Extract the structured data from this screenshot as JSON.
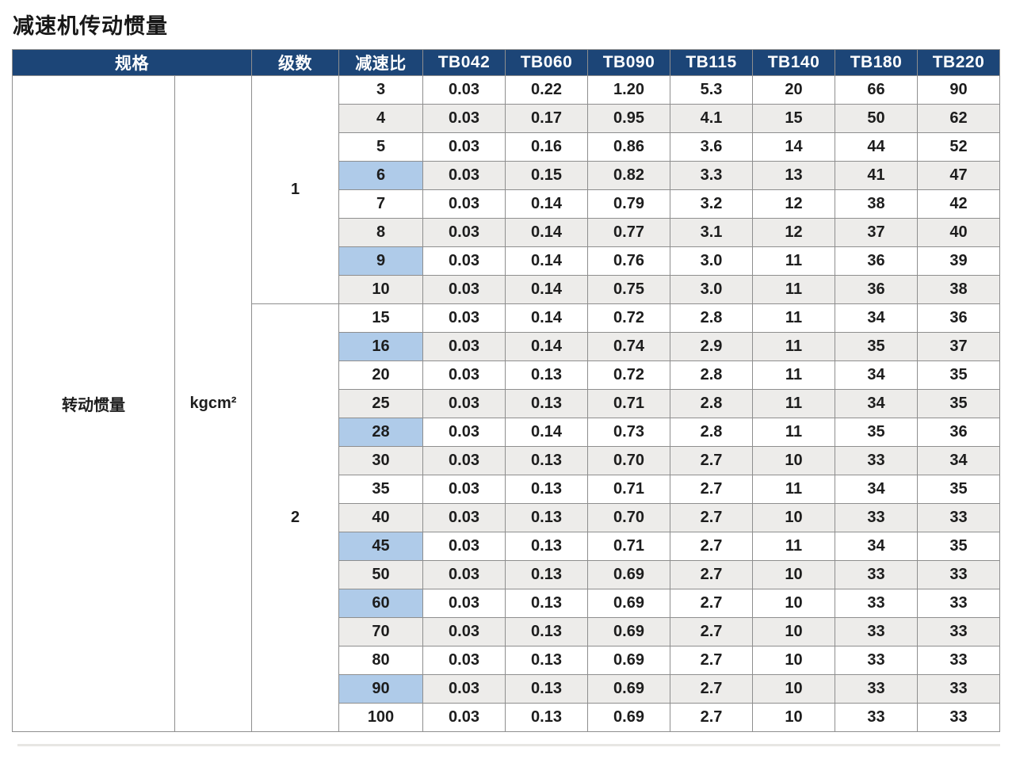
{
  "page": {
    "title": "减速机传动惯量"
  },
  "colors": {
    "header_bg": "#1c4577",
    "header_text": "#ffffff",
    "stripe_bg": "#edecea",
    "highlight_bg": "#afcbe9",
    "border": "#8e8e8e",
    "text": "#1d1d1d"
  },
  "table": {
    "header": {
      "spec": "规格",
      "stages": "级数",
      "ratio": "减速比",
      "models": [
        "TB042",
        "TB060",
        "TB090",
        "TB115",
        "TB140",
        "TB180",
        "TB220"
      ]
    },
    "spec_label": "转动惯量",
    "unit": "kgcm²",
    "groups": [
      {
        "stage": "1",
        "rows": [
          {
            "ratio": "3",
            "highlight": false,
            "values": [
              "0.03",
              "0.22",
              "1.20",
              "5.3",
              "20",
              "66",
              "90"
            ]
          },
          {
            "ratio": "4",
            "highlight": false,
            "values": [
              "0.03",
              "0.17",
              "0.95",
              "4.1",
              "15",
              "50",
              "62"
            ]
          },
          {
            "ratio": "5",
            "highlight": false,
            "values": [
              "0.03",
              "0.16",
              "0.86",
              "3.6",
              "14",
              "44",
              "52"
            ]
          },
          {
            "ratio": "6",
            "highlight": true,
            "values": [
              "0.03",
              "0.15",
              "0.82",
              "3.3",
              "13",
              "41",
              "47"
            ]
          },
          {
            "ratio": "7",
            "highlight": false,
            "values": [
              "0.03",
              "0.14",
              "0.79",
              "3.2",
              "12",
              "38",
              "42"
            ]
          },
          {
            "ratio": "8",
            "highlight": false,
            "values": [
              "0.03",
              "0.14",
              "0.77",
              "3.1",
              "12",
              "37",
              "40"
            ]
          },
          {
            "ratio": "9",
            "highlight": true,
            "values": [
              "0.03",
              "0.14",
              "0.76",
              "3.0",
              "11",
              "36",
              "39"
            ]
          },
          {
            "ratio": "10",
            "highlight": false,
            "values": [
              "0.03",
              "0.14",
              "0.75",
              "3.0",
              "11",
              "36",
              "38"
            ]
          }
        ]
      },
      {
        "stage": "2",
        "rows": [
          {
            "ratio": "15",
            "highlight": false,
            "values": [
              "0.03",
              "0.14",
              "0.72",
              "2.8",
              "11",
              "34",
              "36"
            ]
          },
          {
            "ratio": "16",
            "highlight": true,
            "values": [
              "0.03",
              "0.14",
              "0.74",
              "2.9",
              "11",
              "35",
              "37"
            ]
          },
          {
            "ratio": "20",
            "highlight": false,
            "values": [
              "0.03",
              "0.13",
              "0.72",
              "2.8",
              "11",
              "34",
              "35"
            ]
          },
          {
            "ratio": "25",
            "highlight": false,
            "values": [
              "0.03",
              "0.13",
              "0.71",
              "2.8",
              "11",
              "34",
              "35"
            ]
          },
          {
            "ratio": "28",
            "highlight": true,
            "values": [
              "0.03",
              "0.14",
              "0.73",
              "2.8",
              "11",
              "35",
              "36"
            ]
          },
          {
            "ratio": "30",
            "highlight": false,
            "values": [
              "0.03",
              "0.13",
              "0.70",
              "2.7",
              "10",
              "33",
              "34"
            ]
          },
          {
            "ratio": "35",
            "highlight": false,
            "values": [
              "0.03",
              "0.13",
              "0.71",
              "2.7",
              "11",
              "34",
              "35"
            ]
          },
          {
            "ratio": "40",
            "highlight": false,
            "values": [
              "0.03",
              "0.13",
              "0.70",
              "2.7",
              "10",
              "33",
              "33"
            ]
          },
          {
            "ratio": "45",
            "highlight": true,
            "values": [
              "0.03",
              "0.13",
              "0.71",
              "2.7",
              "11",
              "34",
              "35"
            ]
          },
          {
            "ratio": "50",
            "highlight": false,
            "values": [
              "0.03",
              "0.13",
              "0.69",
              "2.7",
              "10",
              "33",
              "33"
            ]
          },
          {
            "ratio": "60",
            "highlight": true,
            "values": [
              "0.03",
              "0.13",
              "0.69",
              "2.7",
              "10",
              "33",
              "33"
            ]
          },
          {
            "ratio": "70",
            "highlight": false,
            "values": [
              "0.03",
              "0.13",
              "0.69",
              "2.7",
              "10",
              "33",
              "33"
            ]
          },
          {
            "ratio": "80",
            "highlight": false,
            "values": [
              "0.03",
              "0.13",
              "0.69",
              "2.7",
              "10",
              "33",
              "33"
            ]
          },
          {
            "ratio": "90",
            "highlight": true,
            "values": [
              "0.03",
              "0.13",
              "0.69",
              "2.7",
              "10",
              "33",
              "33"
            ]
          },
          {
            "ratio": "100",
            "highlight": false,
            "values": [
              "0.03",
              "0.13",
              "0.69",
              "2.7",
              "10",
              "33",
              "33"
            ]
          }
        ]
      }
    ]
  }
}
